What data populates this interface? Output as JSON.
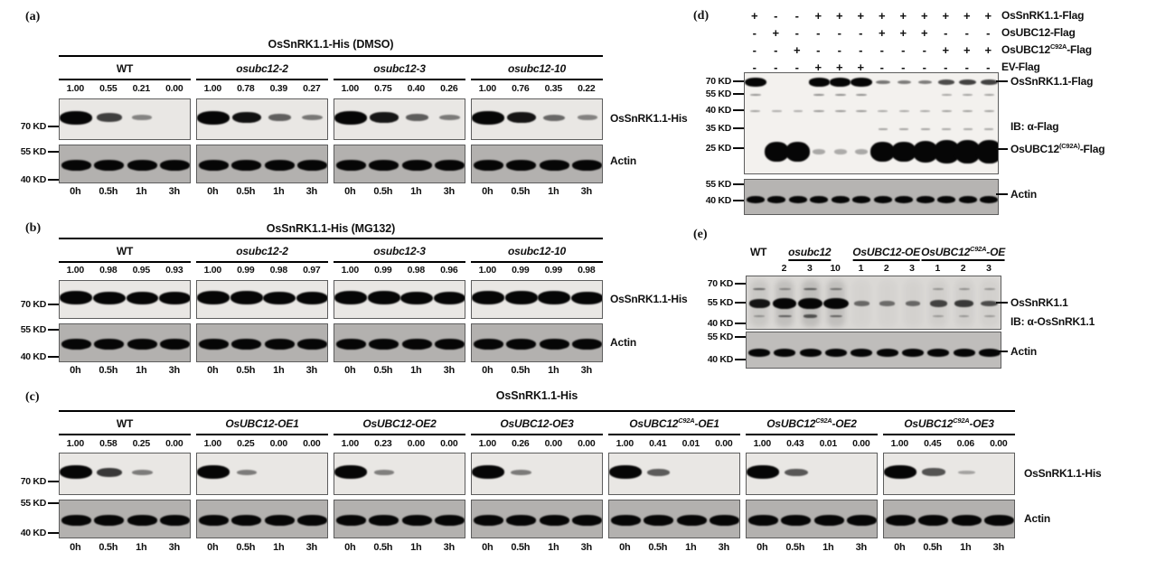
{
  "panels": {
    "a": {
      "tag": "(a)",
      "title": "OsSnRK1.1-His (DMSO)",
      "timepoints": [
        "0h",
        "0.5h",
        "1h",
        "3h"
      ],
      "marker_labels": [
        "70 KD",
        "55 KD",
        "40 KD"
      ],
      "right_labels": [
        "OsSnRK1.1-His",
        "Actin"
      ],
      "groups": [
        {
          "name": {
            "pre": "WT"
          },
          "ratios": [
            "1.00",
            "0.55",
            "0.21",
            "0.00"
          ]
        },
        {
          "name": {
            "pre": "osubc12-2",
            "italic": true
          },
          "ratios": [
            "1.00",
            "0.78",
            "0.39",
            "0.27"
          ]
        },
        {
          "name": {
            "pre": "osubc12-3",
            "italic": true
          },
          "ratios": [
            "1.00",
            "0.75",
            "0.40",
            "0.26"
          ]
        },
        {
          "name": {
            "pre": "osubc12-10",
            "italic": true
          },
          "ratios": [
            "1.00",
            "0.76",
            "0.35",
            "0.22"
          ]
        }
      ]
    },
    "b": {
      "tag": "(b)",
      "title": "OsSnRK1.1-His (MG132)",
      "timepoints": [
        "0h",
        "0.5h",
        "1h",
        "3h"
      ],
      "marker_labels": [
        "70 KD",
        "55 KD",
        "40 KD"
      ],
      "right_labels": [
        "OsSnRK1.1-His",
        "Actin"
      ],
      "groups": [
        {
          "name": {
            "pre": "WT"
          },
          "ratios": [
            "1.00",
            "0.98",
            "0.95",
            "0.93"
          ]
        },
        {
          "name": {
            "pre": "osubc12-2",
            "italic": true
          },
          "ratios": [
            "1.00",
            "0.99",
            "0.98",
            "0.97"
          ]
        },
        {
          "name": {
            "pre": "osubc12-3",
            "italic": true
          },
          "ratios": [
            "1.00",
            "0.99",
            "0.98",
            "0.96"
          ]
        },
        {
          "name": {
            "pre": "osubc12-10",
            "italic": true
          },
          "ratios": [
            "1.00",
            "0.99",
            "0.99",
            "0.98"
          ]
        }
      ]
    },
    "c": {
      "tag": "(c)",
      "title": "OsSnRK1.1-His",
      "timepoints": [
        "0h",
        "0.5h",
        "1h",
        "3h"
      ],
      "marker_labels": [
        "70 KD",
        "55 KD",
        "40 KD"
      ],
      "right_labels": [
        "OsSnRK1.1-His",
        "Actin"
      ],
      "groups": [
        {
          "name": {
            "pre": "WT"
          },
          "ratios": [
            "1.00",
            "0.58",
            "0.25",
            "0.00"
          ]
        },
        {
          "name": {
            "pre": "OsUBC12-OE1",
            "italic": true
          },
          "ratios": [
            "1.00",
            "0.25",
            "0.00",
            "0.00"
          ]
        },
        {
          "name": {
            "pre": "OsUBC12-OE2",
            "italic": true
          },
          "ratios": [
            "1.00",
            "0.23",
            "0.00",
            "0.00"
          ]
        },
        {
          "name": {
            "pre": "OsUBC12-OE3",
            "italic": true
          },
          "ratios": [
            "1.00",
            "0.26",
            "0.00",
            "0.00"
          ]
        },
        {
          "name": {
            "pre": "OsUBC12",
            "sup": "C92A",
            "post": "-OE1",
            "italic": true
          },
          "ratios": [
            "1.00",
            "0.41",
            "0.01",
            "0.00"
          ]
        },
        {
          "name": {
            "pre": "OsUBC12",
            "sup": "C92A",
            "post": "-OE2",
            "italic": true
          },
          "ratios": [
            "1.00",
            "0.43",
            "0.01",
            "0.00"
          ]
        },
        {
          "name": {
            "pre": "OsUBC12",
            "sup": "C92A",
            "post": "-OE3",
            "italic": true
          },
          "ratios": [
            "1.00",
            "0.45",
            "0.06",
            "0.00"
          ]
        }
      ]
    },
    "d": {
      "tag": "(d)",
      "sign_rows": [
        {
          "label": {
            "pre": "OsSnRK1.1-Flag"
          },
          "signs": [
            "+",
            "-",
            "-",
            "+",
            "+",
            "+",
            "+",
            "+",
            "+",
            "+",
            "+",
            "+"
          ]
        },
        {
          "label": {
            "pre": "OsUBC12-Flag"
          },
          "signs": [
            "-",
            "+",
            "-",
            "-",
            "-",
            "-",
            "+",
            "+",
            "+",
            "-",
            "-",
            "-"
          ]
        },
        {
          "label": {
            "pre": "OsUBC12",
            "sup": "C92A",
            "post": "-Flag"
          },
          "signs": [
            "-",
            "-",
            "+",
            "-",
            "-",
            "-",
            "-",
            "-",
            "-",
            "+",
            "+",
            "+"
          ]
        },
        {
          "label": {
            "pre": "EV-Flag"
          },
          "signs": [
            "-",
            "-",
            "-",
            "+",
            "+",
            "+",
            "-",
            "-",
            "-",
            "-",
            "-",
            "-"
          ]
        }
      ],
      "marker_labels_main": [
        "70 KD",
        "55 KD",
        "40 KD",
        "35 KD",
        "25 KD"
      ],
      "marker_labels_actin": [
        "55 KD",
        "40 KD"
      ],
      "right_labels": [
        {
          "pre": "OsSnRK1.1-Flag",
          "dash": true
        },
        {
          "pre": "IB: α-Flag",
          "dash": false
        },
        {
          "pre": "OsUBC12",
          "sup": "(C92A)",
          "post": "-Flag",
          "dash": true
        },
        {
          "pre": "Actin",
          "dash": true
        }
      ],
      "main_band_rows": [
        {
          "levels": [
            1,
            0,
            0,
            0.95,
            0.95,
            1,
            0.3,
            0.28,
            0.27,
            0.5,
            0.55,
            0.55
          ]
        },
        {
          "levels": [
            0.18,
            0,
            0,
            0.2,
            0.2,
            0.2,
            0,
            0,
            0,
            0.1,
            0.12,
            0.12
          ]
        },
        {
          "levels": [
            0.12,
            0.05,
            0.05,
            0.16,
            0.16,
            0.16,
            0.08,
            0.08,
            0.08,
            0.12,
            0.12,
            0.12
          ]
        },
        {
          "levels": [
            0,
            0,
            0,
            0,
            0,
            0,
            0.1,
            0.1,
            0.1,
            0.08,
            0.08,
            0.08
          ]
        },
        {
          "levels": [
            0,
            1,
            1,
            0.06,
            0.05,
            0.06,
            1,
            1.05,
            1.1,
            1.2,
            1.25,
            1.25
          ]
        }
      ],
      "actin_levels": [
        1,
        1,
        1,
        1,
        1,
        1,
        1,
        1,
        1,
        1,
        1,
        1
      ]
    },
    "e": {
      "tag": "(e)",
      "headers": [
        {
          "pre": "WT"
        },
        {
          "pre": "osubc12",
          "italic": true,
          "underline": true
        },
        {
          "pre": "OsUBC12-OE",
          "italic": true,
          "underline": true
        },
        {
          "pre": "OsUBC12",
          "sup": "C92A",
          "post": "-OE",
          "italic": true,
          "underline": true
        }
      ],
      "lane_numbers": [
        "2",
        "3",
        "10",
        "1",
        "2",
        "3",
        "1",
        "2",
        "3"
      ],
      "marker_labels_main": [
        "70 KD",
        "55 KD",
        "40 KD"
      ],
      "marker_labels_actin": [
        "55 KD",
        "40 KD"
      ],
      "right_labels": [
        {
          "pre": "OsSnRK1.1",
          "dash": true
        },
        {
          "pre": "IB: α-OsSnRK1.1",
          "dash": false
        },
        {
          "pre": "Actin",
          "dash": true
        }
      ],
      "band_rows": {
        "upper": [
          0.3,
          0.12,
          0.35,
          0.22,
          0,
          0,
          0,
          0.08,
          0.1,
          0.08
        ],
        "main": [
          0.75,
          1,
          1.05,
          1.1,
          0.3,
          0.28,
          0.3,
          0.5,
          0.55,
          0.45
        ],
        "lower": [
          0.08,
          0.35,
          0.4,
          0.32,
          0,
          0,
          0,
          0.05,
          0.06,
          0.05
        ],
        "smear": [
          0.35,
          0.5,
          0.55,
          0.5,
          0.1,
          0.1,
          0.12,
          0.18,
          0.18,
          0.15
        ]
      },
      "actin_levels": [
        1,
        1,
        1,
        1,
        1,
        1,
        1,
        1,
        1,
        1
      ]
    }
  }
}
